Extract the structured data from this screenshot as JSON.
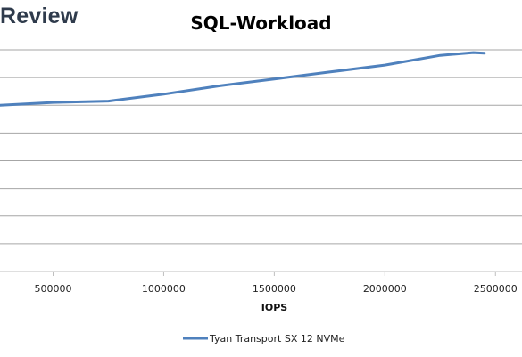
{
  "header": {
    "brand": "Review"
  },
  "chart_data": {
    "type": "line",
    "title": "SQL-Workload",
    "xlabel": "IOPS",
    "ylabel": "",
    "xticks": [
      500000,
      1000000,
      1500000,
      2000000,
      2500000
    ],
    "xlim": [
      260000,
      2620000
    ],
    "ylim": [
      0,
      8
    ],
    "grid": true,
    "legend": "bottom",
    "series": [
      {
        "name": "Tyan Transport SX 12 NVMe",
        "color": "#4f81bd",
        "x": [
          260000,
          500000,
          750000,
          1000000,
          1250000,
          1500000,
          1750000,
          2000000,
          2250000,
          2400000,
          2450000
        ],
        "y": [
          6.0,
          6.1,
          6.15,
          6.4,
          6.7,
          6.95,
          7.2,
          7.45,
          7.8,
          7.9,
          7.88
        ]
      }
    ]
  }
}
